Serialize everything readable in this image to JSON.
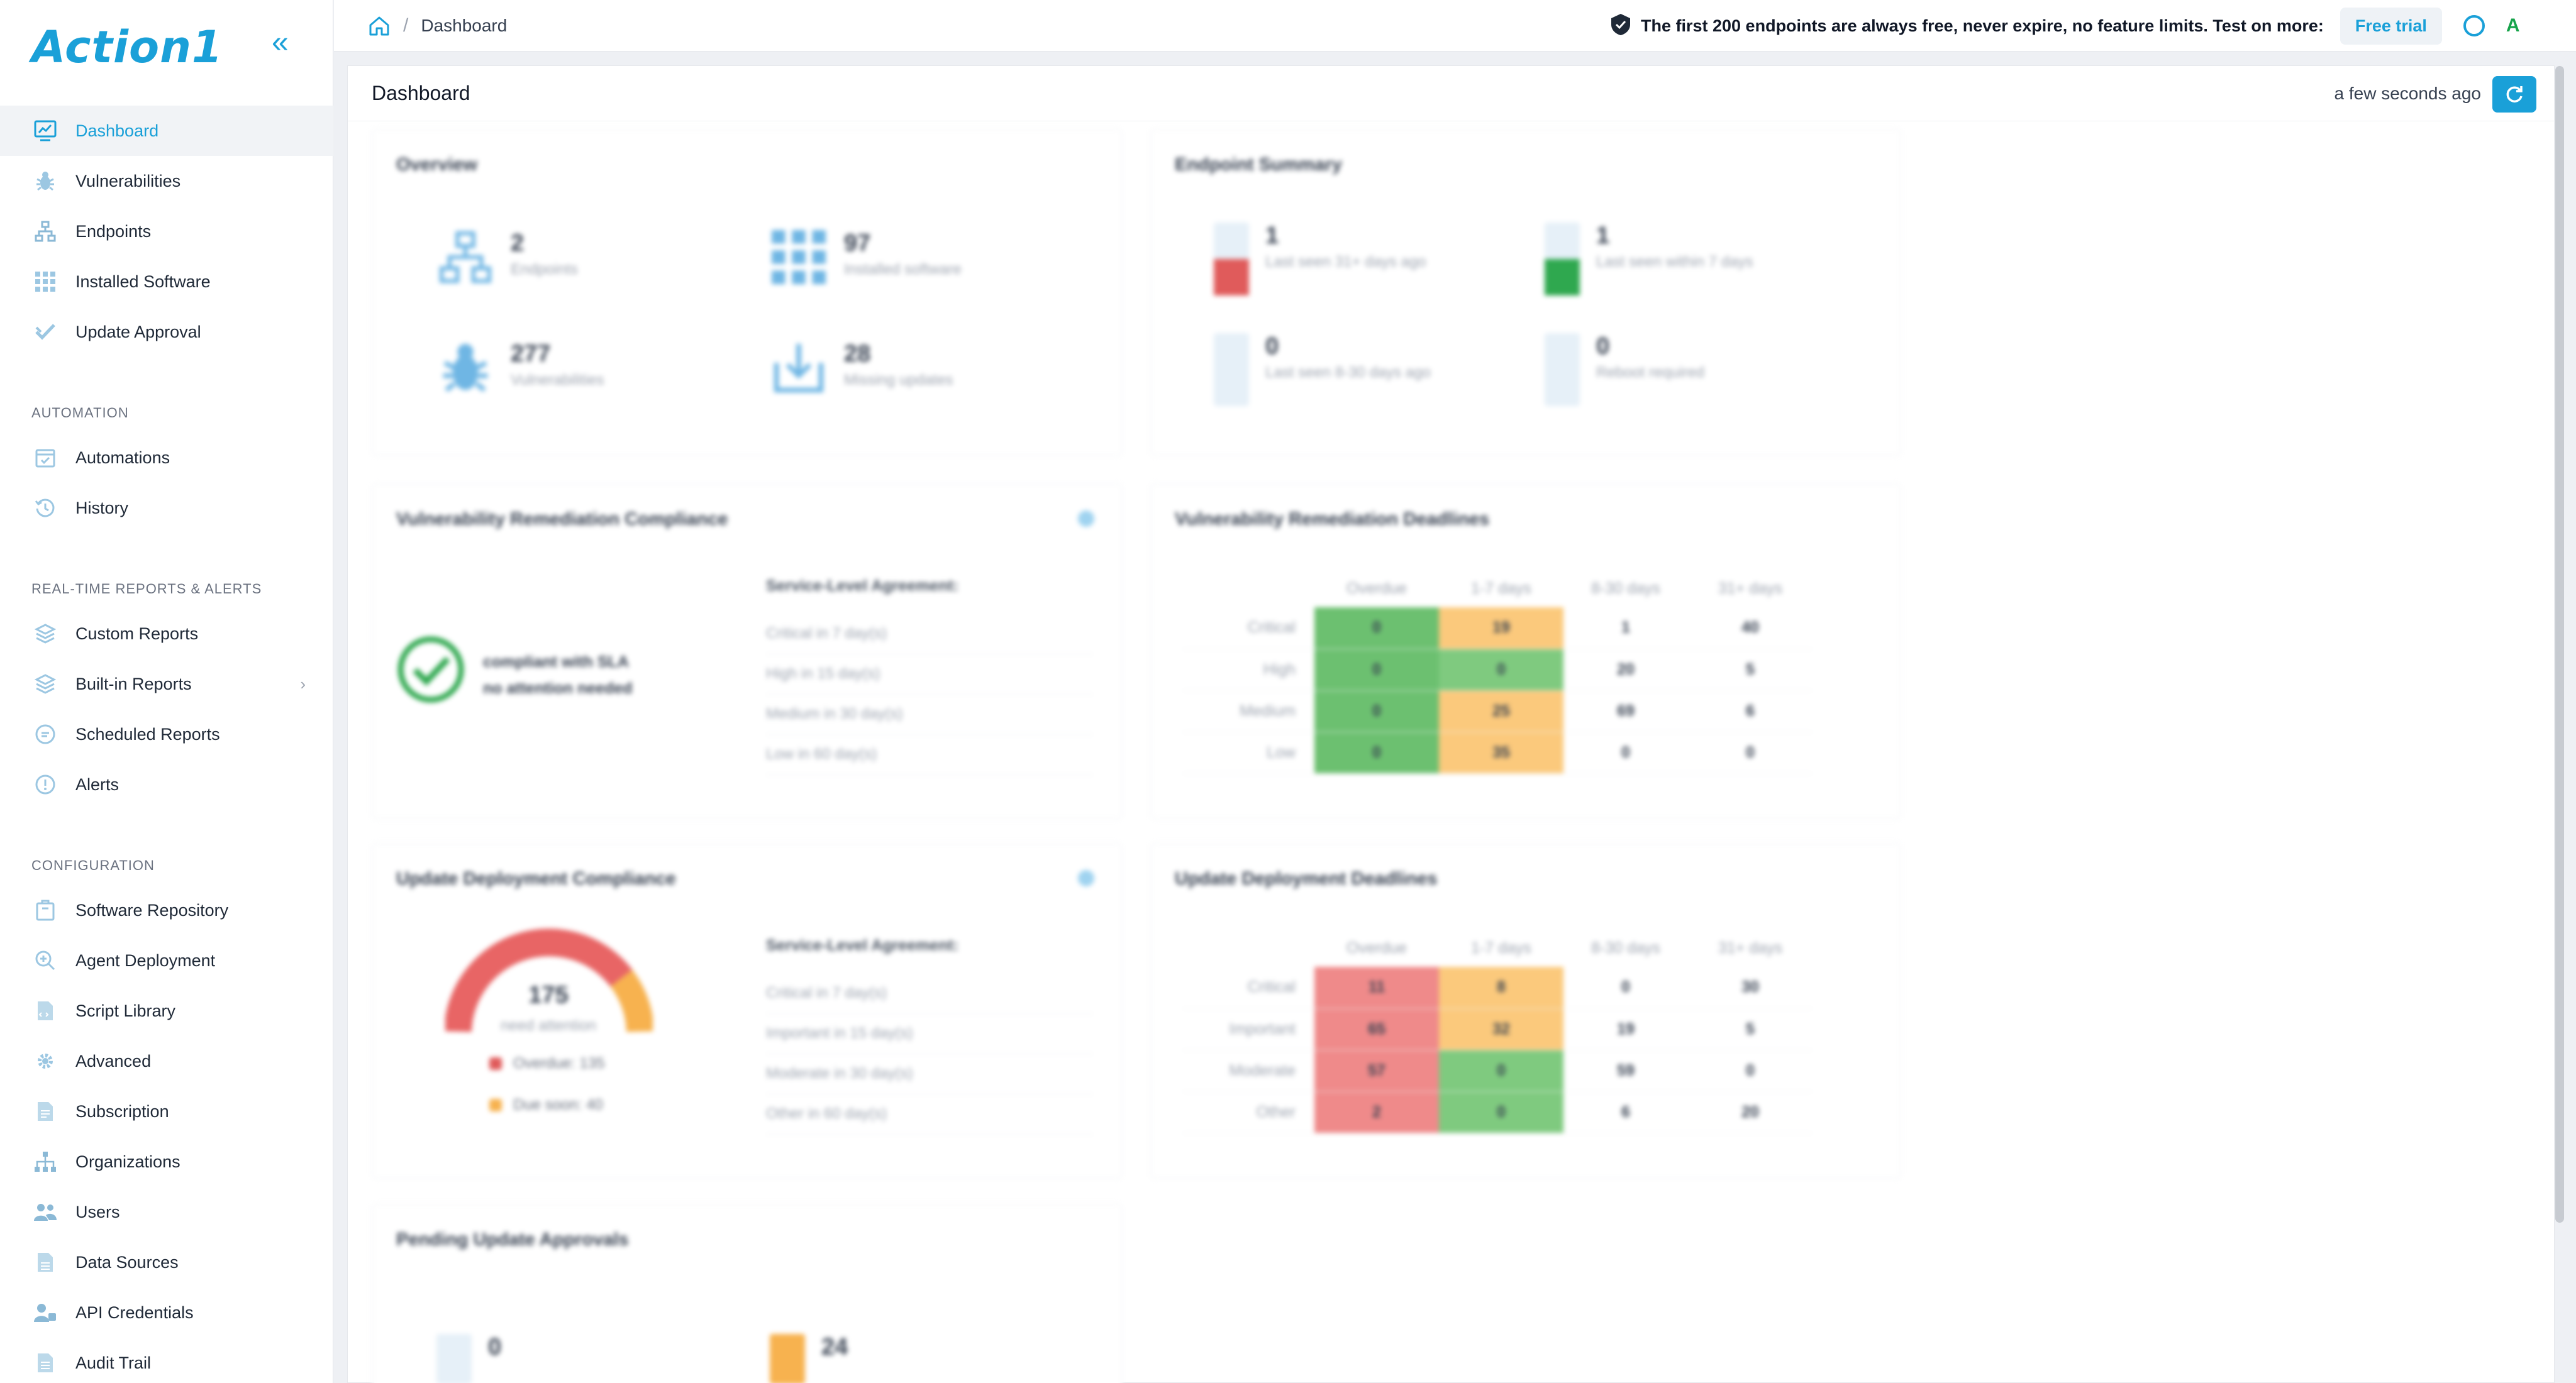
{
  "app": {
    "logo_text": "Action1"
  },
  "sidebar": {
    "main_items": [
      {
        "label": "Dashboard",
        "icon": "dashboard-icon"
      },
      {
        "label": "Vulnerabilities",
        "icon": "bug-icon"
      },
      {
        "label": "Endpoints",
        "icon": "network-icon"
      },
      {
        "label": "Installed Software",
        "icon": "grid-icon"
      },
      {
        "label": "Update Approval",
        "icon": "check-icon"
      }
    ],
    "automation_label": "AUTOMATION",
    "automation_items": [
      {
        "label": "Automations",
        "icon": "calendar-check-icon"
      },
      {
        "label": "History",
        "icon": "history-icon"
      }
    ],
    "reports_label": "REAL-TIME REPORTS & ALERTS",
    "reports_items": [
      {
        "label": "Custom Reports",
        "icon": "layers-icon"
      },
      {
        "label": "Built-in Reports",
        "icon": "layers-icon"
      },
      {
        "label": "Scheduled Reports",
        "icon": "clock-icon"
      },
      {
        "label": "Alerts",
        "icon": "alert-icon"
      }
    ],
    "config_label": "CONFIGURATION",
    "config_items": [
      {
        "label": "Software Repository",
        "icon": "package-icon"
      },
      {
        "label": "Agent Deployment",
        "icon": "search-plus-icon"
      },
      {
        "label": "Script Library",
        "icon": "script-icon"
      },
      {
        "label": "Advanced",
        "icon": "gear-icon"
      },
      {
        "label": "Subscription",
        "icon": "document-icon"
      },
      {
        "label": "Organizations",
        "icon": "org-icon"
      },
      {
        "label": "Users",
        "icon": "users-icon"
      },
      {
        "label": "Data Sources",
        "icon": "database-icon"
      },
      {
        "label": "API Credentials",
        "icon": "key-user-icon"
      },
      {
        "label": "Audit Trail",
        "icon": "audit-icon"
      }
    ]
  },
  "topbar": {
    "breadcrumb": "Dashboard",
    "promo": "The first 200 endpoints are always free, never expire, no feature limits. Test on more:",
    "trial_label": "Free trial",
    "avatar_letter": "A"
  },
  "main": {
    "title": "Dashboard",
    "updated": "a few seconds ago"
  },
  "widgets": {
    "overview": {
      "title": "Overview",
      "stats": [
        {
          "value": "2",
          "label": "Endpoints"
        },
        {
          "value": "97",
          "label": "Installed software"
        },
        {
          "value": "277",
          "label": "Vulnerabilities"
        },
        {
          "value": "28",
          "label": "Missing updates"
        }
      ]
    },
    "endpoint_summary": {
      "title": "Endpoint Summary",
      "stats": [
        {
          "value": "1",
          "label": "Last seen 31+ days ago",
          "color": "#e05b5b",
          "fill": 0.5
        },
        {
          "value": "1",
          "label": "Last seen within 7 days",
          "color": "#2fa84f",
          "fill": 0.5
        },
        {
          "value": "0",
          "label": "Last seen 8-30 days ago",
          "color": "#e05b5b",
          "fill": 0
        },
        {
          "value": "0",
          "label": "Reboot required",
          "color": "#2fa84f",
          "fill": 0
        }
      ]
    },
    "vuln_compliance": {
      "title": "Vulnerability Remediation Compliance",
      "status_line1": "compliant with SLA",
      "status_line2": "no attention needed",
      "sla_head": "Service-Level Agreement:",
      "sla_rows": [
        "Critical in 7 day(s)",
        "High in 15 day(s)",
        "Medium in 30 day(s)",
        "Low in 60 day(s)"
      ]
    },
    "vuln_deadlines": {
      "title": "Vulnerability Remediation Deadlines",
      "columns": [
        "Overdue",
        "1-7 days",
        "8-30 days",
        "31+ days"
      ],
      "rows": [
        {
          "label": "Critical",
          "values": [
            "0",
            "19",
            "1",
            "40"
          ]
        },
        {
          "label": "High",
          "values": [
            "0",
            "0",
            "20",
            "5"
          ]
        },
        {
          "label": "Medium",
          "values": [
            "0",
            "25",
            "69",
            "6"
          ]
        },
        {
          "label": "Low",
          "values": [
            "0",
            "35",
            "0",
            "0"
          ]
        }
      ]
    },
    "update_compliance": {
      "title": "Update Deployment Compliance",
      "gauge_value": "175",
      "gauge_label": "need attention",
      "legend_overdue": "Overdue: 135",
      "legend_soon": "Due soon: 40",
      "sla_head": "Service-Level Agreement:",
      "sla_rows": [
        "Critical in 7 day(s)",
        "Important in 15 day(s)",
        "Moderate in 30 day(s)",
        "Other in 60 day(s)"
      ]
    },
    "update_deadlines": {
      "title": "Update Deployment Deadlines",
      "columns": [
        "Overdue",
        "1-7 days",
        "8-30 days",
        "31+ days"
      ],
      "rows": [
        {
          "label": "Critical",
          "values": [
            "11",
            "8",
            "0",
            "30"
          ]
        },
        {
          "label": "Important",
          "values": [
            "65",
            "32",
            "19",
            "5"
          ]
        },
        {
          "label": "Moderate",
          "values": [
            "57",
            "0",
            "59",
            "0"
          ]
        },
        {
          "label": "Other",
          "values": [
            "2",
            "0",
            "6",
            "20"
          ]
        }
      ]
    },
    "pending": {
      "title": "Pending Update Approvals",
      "stats": [
        {
          "value": "0"
        },
        {
          "value": "24"
        }
      ]
    }
  }
}
